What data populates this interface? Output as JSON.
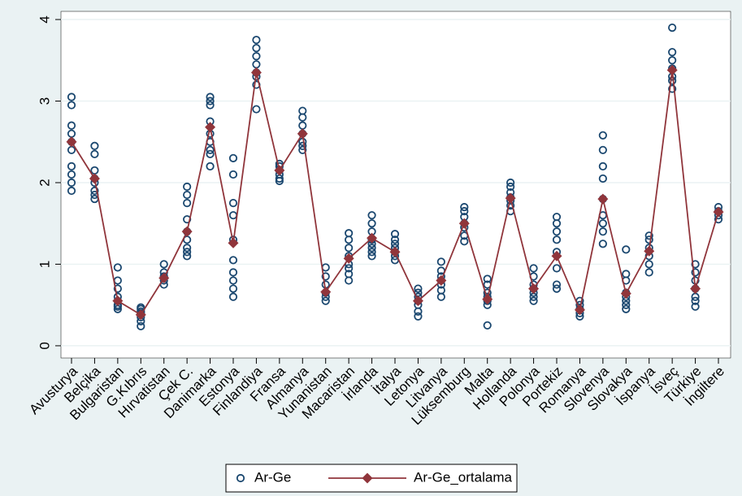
{
  "chart_data": {
    "type": "scatter_line",
    "categories": [
      "Avusturya",
      "Belçika",
      "Bulgaristan",
      "G.Kıbrıs",
      "Hırvatistan",
      "Çek C.",
      "Danimarka",
      "Estonya",
      "Finlandiya",
      "Fransa",
      "Almanya",
      "Yunanistan",
      "Macaristan",
      "İrlanda",
      "İtalya",
      "Letonya",
      "Litvanya",
      "Lüksemburg",
      "Malta",
      "Hollanda",
      "Polonya",
      "Portekiz",
      "Romanya",
      "Slovenya",
      "Slovakya",
      "İspanya",
      "İsveç",
      "Türkiye",
      "İngiltere"
    ],
    "series": [
      {
        "name": "Ar-Ge",
        "type": "scatter",
        "color": "#1a476f",
        "values": [
          [
            1.9,
            2.0,
            2.1,
            2.2,
            2.4,
            2.5,
            2.6,
            2.7,
            2.95,
            3.05
          ],
          [
            1.8,
            1.85,
            1.9,
            2.0,
            2.05,
            2.15,
            2.35,
            2.45
          ],
          [
            0.45,
            0.48,
            0.5,
            0.55,
            0.6,
            0.7,
            0.8,
            0.96
          ],
          [
            0.24,
            0.3,
            0.35,
            0.4,
            0.42,
            0.45,
            0.47
          ],
          [
            0.75,
            0.8,
            0.85,
            0.9,
            1.0
          ],
          [
            1.1,
            1.15,
            1.2,
            1.3,
            1.4,
            1.55,
            1.75,
            1.85,
            1.95
          ],
          [
            2.2,
            2.35,
            2.4,
            2.5,
            2.6,
            2.75,
            2.95,
            3.0,
            3.05
          ],
          [
            0.6,
            0.7,
            0.8,
            0.9,
            1.05,
            1.3,
            1.6,
            1.75,
            2.1,
            2.3
          ],
          [
            2.9,
            3.2,
            3.3,
            3.35,
            3.45,
            3.55,
            3.65,
            3.75
          ],
          [
            2.02,
            2.05,
            2.1,
            2.15,
            2.2,
            2.23
          ],
          [
            2.4,
            2.45,
            2.5,
            2.6,
            2.7,
            2.8,
            2.88
          ],
          [
            0.55,
            0.6,
            0.65,
            0.75,
            0.85,
            0.96
          ],
          [
            0.8,
            0.88,
            0.95,
            1.0,
            1.1,
            1.2,
            1.3,
            1.38
          ],
          [
            1.1,
            1.15,
            1.2,
            1.25,
            1.3,
            1.4,
            1.5,
            1.6
          ],
          [
            1.05,
            1.1,
            1.15,
            1.2,
            1.25,
            1.3,
            1.37
          ],
          [
            0.36,
            0.42,
            0.5,
            0.55,
            0.6,
            0.65,
            0.7
          ],
          [
            0.6,
            0.68,
            0.75,
            0.8,
            0.85,
            0.92,
            1.03
          ],
          [
            1.28,
            1.35,
            1.45,
            1.5,
            1.58,
            1.65,
            1.7
          ],
          [
            0.25,
            0.5,
            0.55,
            0.6,
            0.65,
            0.75,
            0.82
          ],
          [
            1.65,
            1.72,
            1.78,
            1.82,
            1.88,
            1.95,
            2.0
          ],
          [
            0.55,
            0.6,
            0.65,
            0.7,
            0.75,
            0.85,
            0.95
          ],
          [
            0.7,
            0.75,
            0.95,
            1.15,
            1.3,
            1.4,
            1.5,
            1.58
          ],
          [
            0.36,
            0.4,
            0.45,
            0.5,
            0.55
          ],
          [
            1.25,
            1.4,
            1.5,
            1.6,
            1.8,
            2.05,
            2.2,
            2.4,
            2.58
          ],
          [
            0.45,
            0.5,
            0.55,
            0.6,
            0.65,
            0.8,
            0.88,
            1.18
          ],
          [
            0.9,
            1.0,
            1.1,
            1.2,
            1.3,
            1.35
          ],
          [
            3.15,
            3.25,
            3.3,
            3.4,
            3.5,
            3.6,
            3.9
          ],
          [
            0.48,
            0.55,
            0.6,
            0.7,
            0.8,
            0.9,
            1.0
          ],
          [
            1.55,
            1.6,
            1.65,
            1.7
          ]
        ]
      },
      {
        "name": "Ar-Ge_ortalama",
        "type": "line",
        "color": "#90353b",
        "values": [
          2.5,
          2.05,
          0.55,
          0.38,
          0.83,
          1.4,
          2.68,
          1.26,
          3.35,
          2.15,
          2.6,
          0.66,
          1.07,
          1.32,
          1.15,
          0.55,
          0.8,
          1.5,
          0.57,
          1.81,
          0.7,
          1.1,
          0.44,
          1.8,
          0.64,
          1.16,
          3.38,
          0.7,
          1.64
        ]
      }
    ],
    "ylim": [
      -0.15,
      4.1
    ],
    "yticks": [
      0,
      1,
      2,
      3,
      4
    ],
    "grid": true
  }
}
